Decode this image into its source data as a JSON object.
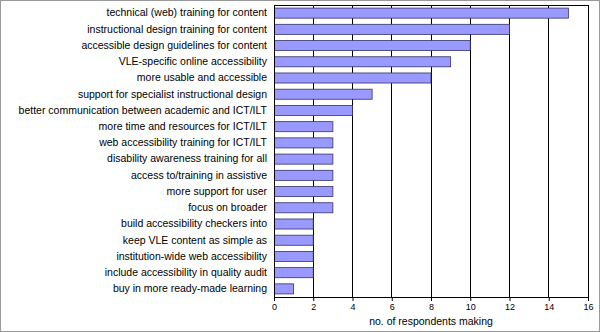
{
  "chart_data": {
    "type": "bar",
    "orientation": "horizontal",
    "categories": [
      "technical (web) training for content",
      "instructional design training for content",
      "accessible design guidelines for content",
      "VLE-specific online accessibility",
      "more usable and accessible",
      "support for specialist instructional design",
      "better communication between academic and ICT/ILT",
      "more time and resources for ICT/ILT",
      "web accessibility training for ICT/ILT",
      "disability awareness training for all",
      "access to/training in assistive",
      "more support for user",
      "focus on broader",
      "build accessibility checkers into",
      "keep VLE content as simple as",
      "institution-wide web accessibility",
      "include accessibility in quality audit",
      "buy in more ready-made learning"
    ],
    "values": [
      15,
      12,
      10,
      9,
      8,
      5,
      4,
      3,
      3,
      3,
      3,
      3,
      3,
      2,
      2,
      2,
      2,
      1
    ],
    "color": "#9999ff",
    "x_label": "no. of respondents making",
    "xlim": [
      0,
      16
    ],
    "xticks": [
      0,
      2,
      4,
      6,
      8,
      10,
      12,
      14,
      16
    ],
    "grid": true
  }
}
